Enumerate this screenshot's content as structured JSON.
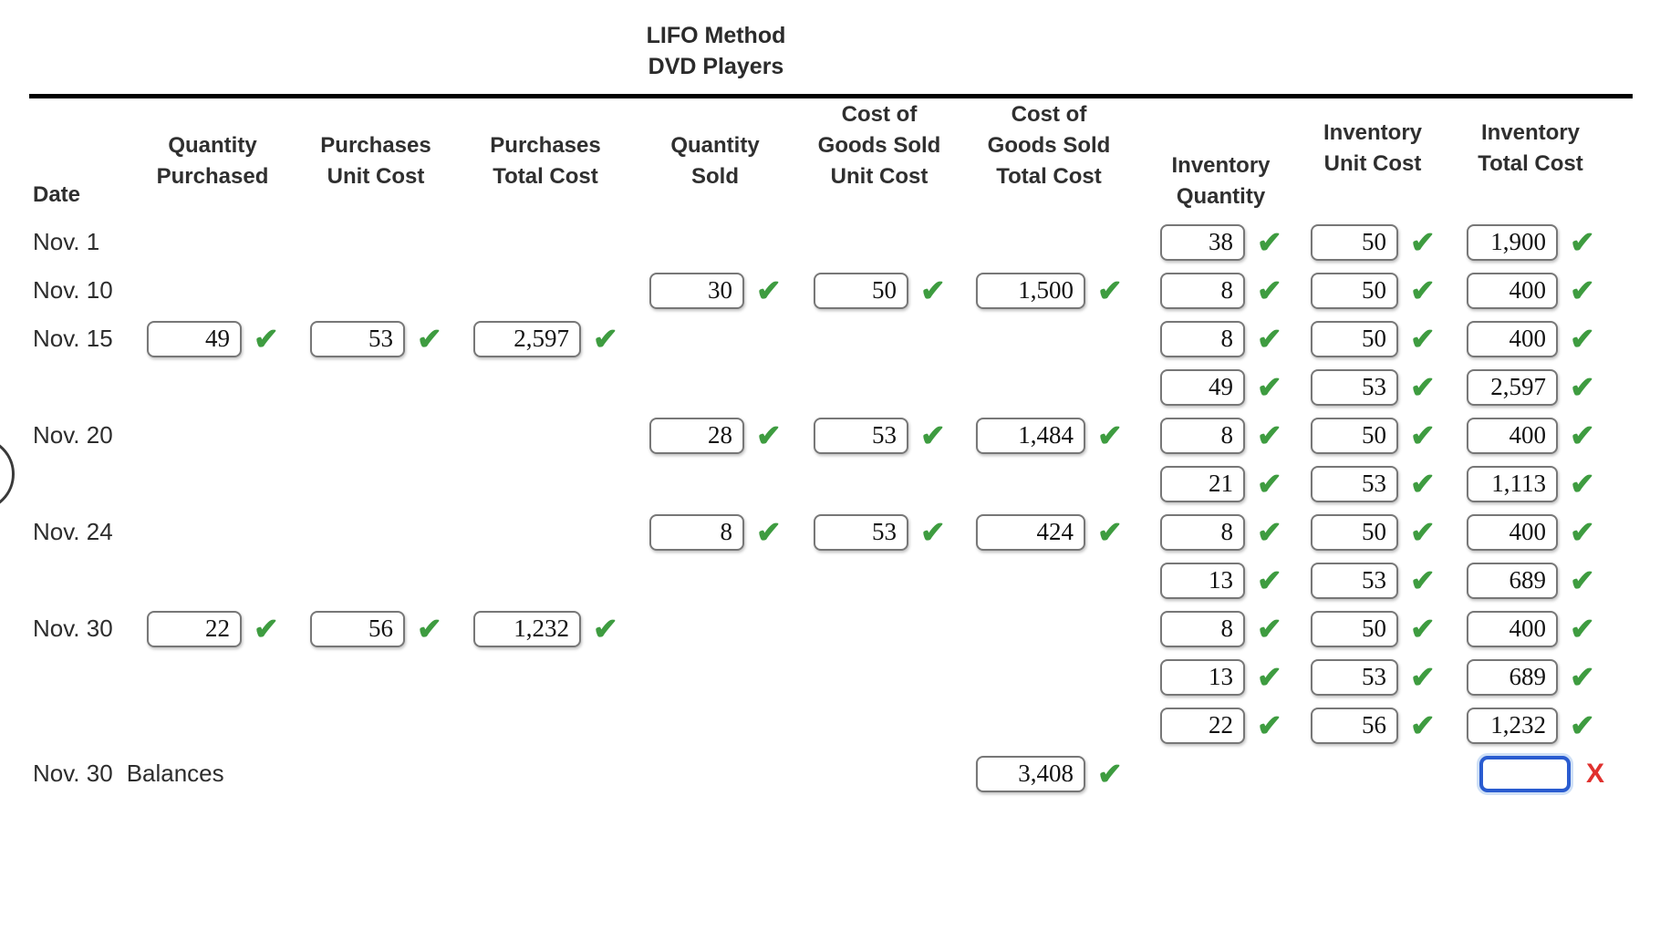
{
  "title": {
    "line1": "LIFO Method",
    "line2": "DVD Players"
  },
  "headers": {
    "date": "Date",
    "cols": [
      {
        "key": "qp",
        "lines": [
          "Quantity",
          "Purchased"
        ]
      },
      {
        "key": "pu",
        "lines": [
          "Purchases",
          "Unit Cost"
        ]
      },
      {
        "key": "pt",
        "lines": [
          "Purchases",
          "Total Cost"
        ]
      },
      {
        "key": "qs",
        "lines": [
          "Quantity",
          "Sold"
        ]
      },
      {
        "key": "cu",
        "lines": [
          "Cost of",
          "Goods Sold",
          "Unit Cost"
        ]
      },
      {
        "key": "ct",
        "lines": [
          "Cost of",
          "Goods Sold",
          "Total Cost"
        ]
      },
      {
        "key": "iq",
        "lines": [
          "Inventory",
          "Quantity"
        ]
      },
      {
        "key": "iu",
        "lines": [
          "Inventory",
          "Unit Cost"
        ]
      },
      {
        "key": "it",
        "lines": [
          "Inventory",
          "Total Cost"
        ]
      }
    ]
  },
  "icons": {
    "check": "✔",
    "x": "X"
  },
  "colors": {
    "check_green": "#3e9c40",
    "error_red": "#e0312e",
    "focus_blue": "#2a5cd0",
    "box_border": "#777777",
    "rule_black": "#000000"
  },
  "rows": [
    {
      "date": "Nov. 1",
      "label": "",
      "cells": {
        "iq": {
          "v": "38"
        },
        "iu": {
          "v": "50"
        },
        "it": {
          "v": "1,900"
        }
      }
    },
    {
      "date": "Nov. 10",
      "label": "",
      "cells": {
        "qs": {
          "v": "30"
        },
        "cu": {
          "v": "50"
        },
        "ct": {
          "v": "1,500"
        },
        "iq": {
          "v": "8"
        },
        "iu": {
          "v": "50"
        },
        "it": {
          "v": "400"
        }
      }
    },
    {
      "date": "Nov. 15",
      "label": "",
      "cells": {
        "qp": {
          "v": "49"
        },
        "pu": {
          "v": "53"
        },
        "pt": {
          "v": "2,597"
        },
        "iq": {
          "v": "8"
        },
        "iu": {
          "v": "50"
        },
        "it": {
          "v": "400"
        }
      }
    },
    {
      "date": "",
      "label": "",
      "cells": {
        "iq": {
          "v": "49"
        },
        "iu": {
          "v": "53"
        },
        "it": {
          "v": "2,597"
        }
      }
    },
    {
      "date": "Nov. 20",
      "label": "",
      "cells": {
        "qs": {
          "v": "28"
        },
        "cu": {
          "v": "53"
        },
        "ct": {
          "v": "1,484"
        },
        "iq": {
          "v": "8"
        },
        "iu": {
          "v": "50"
        },
        "it": {
          "v": "400"
        }
      }
    },
    {
      "date": "",
      "label": "",
      "cells": {
        "iq": {
          "v": "21"
        },
        "iu": {
          "v": "53"
        },
        "it": {
          "v": "1,113"
        }
      }
    },
    {
      "date": "Nov. 24",
      "label": "",
      "cells": {
        "qs": {
          "v": "8"
        },
        "cu": {
          "v": "53"
        },
        "ct": {
          "v": "424"
        },
        "iq": {
          "v": "8"
        },
        "iu": {
          "v": "50"
        },
        "it": {
          "v": "400"
        }
      }
    },
    {
      "date": "",
      "label": "",
      "cells": {
        "iq": {
          "v": "13"
        },
        "iu": {
          "v": "53"
        },
        "it": {
          "v": "689"
        }
      }
    },
    {
      "date": "Nov. 30",
      "label": "",
      "cells": {
        "qp": {
          "v": "22"
        },
        "pu": {
          "v": "56"
        },
        "pt": {
          "v": "1,232"
        },
        "iq": {
          "v": "8"
        },
        "iu": {
          "v": "50"
        },
        "it": {
          "v": "400"
        }
      }
    },
    {
      "date": "",
      "label": "",
      "cells": {
        "iq": {
          "v": "13"
        },
        "iu": {
          "v": "53"
        },
        "it": {
          "v": "689"
        }
      }
    },
    {
      "date": "",
      "label": "",
      "cells": {
        "iq": {
          "v": "22"
        },
        "iu": {
          "v": "56"
        },
        "it": {
          "v": "1,232"
        }
      }
    },
    {
      "date": "Nov. 30",
      "label": "Balances",
      "cells": {
        "ct": {
          "v": "3,408"
        },
        "it": {
          "v": "",
          "m": "x",
          "focused": true
        }
      }
    }
  ]
}
